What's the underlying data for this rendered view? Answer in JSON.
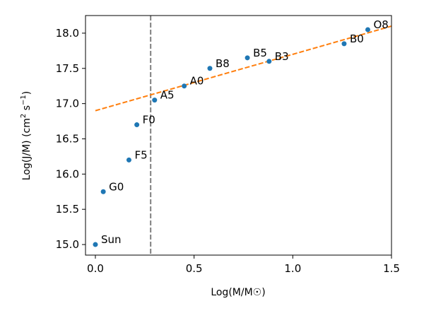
{
  "chart_data": {
    "type": "scatter",
    "xlabel": "Log(M/M☉)",
    "ylabel_main": "Log(J/M) (cm",
    "ylabel_sup1": "2",
    "ylabel_mid": " s",
    "ylabel_sup2": "−1",
    "ylabel_end": ")",
    "xlim": [
      -0.05,
      1.5
    ],
    "ylim": [
      14.85,
      18.25
    ],
    "xticks": [
      {
        "value": 0.0,
        "label": "0.0"
      },
      {
        "value": 0.5,
        "label": "0.5"
      },
      {
        "value": 1.0,
        "label": "1.0"
      },
      {
        "value": 1.5,
        "label": "1.5"
      }
    ],
    "yticks": [
      {
        "value": 15.0,
        "label": "15.0"
      },
      {
        "value": 15.5,
        "label": "15.5"
      },
      {
        "value": 16.0,
        "label": "16.0"
      },
      {
        "value": 16.5,
        "label": "16.5"
      },
      {
        "value": 17.0,
        "label": "17.0"
      },
      {
        "value": 17.5,
        "label": "17.5"
      },
      {
        "value": 18.0,
        "label": "18.0"
      }
    ],
    "points": [
      {
        "label": "Sun",
        "x": 0.0,
        "y": 15.0
      },
      {
        "label": "G0",
        "x": 0.04,
        "y": 15.75
      },
      {
        "label": "F5",
        "x": 0.17,
        "y": 16.2
      },
      {
        "label": "F0",
        "x": 0.21,
        "y": 16.7
      },
      {
        "label": "A5",
        "x": 0.3,
        "y": 17.05
      },
      {
        "label": "A0",
        "x": 0.45,
        "y": 17.25
      },
      {
        "label": "B8",
        "x": 0.58,
        "y": 17.5
      },
      {
        "label": "B5",
        "x": 0.77,
        "y": 17.65
      },
      {
        "label": "B3",
        "x": 0.88,
        "y": 17.6
      },
      {
        "label": "B0",
        "x": 1.26,
        "y": 17.85
      },
      {
        "label": "O8",
        "x": 1.38,
        "y": 18.05
      }
    ],
    "fit_line": {
      "x": [
        0.0,
        1.5
      ],
      "y": [
        16.9,
        18.1
      ],
      "color": "#ff7f0e",
      "style": "dashed"
    },
    "vline": {
      "x": 0.28,
      "color": "#7f7f7f",
      "style": "dashed"
    },
    "point_color": "#1f77b4",
    "grid": false
  }
}
